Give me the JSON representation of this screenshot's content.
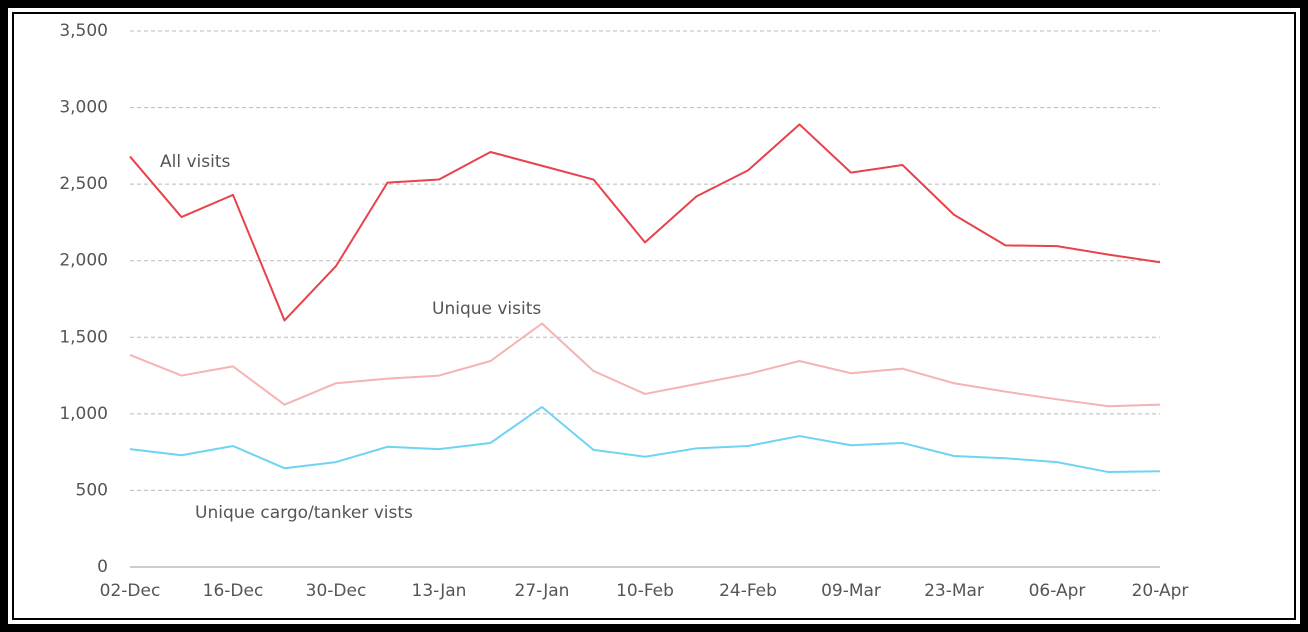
{
  "chart_data": {
    "type": "line",
    "categories": [
      "02-Dec",
      null,
      "16-Dec",
      null,
      "30-Dec",
      null,
      "13-Jan",
      null,
      "27-Jan",
      null,
      "10-Feb",
      null,
      "24-Feb",
      null,
      "09-Mar",
      null,
      "23-Mar",
      null,
      "06-Apr",
      null,
      "20-Apr"
    ],
    "series": [
      {
        "name": "All visits",
        "color": "#e8424a",
        "values": [
          2680,
          2285,
          2430,
          1610,
          1965,
          2510,
          2530,
          2710,
          2620,
          2530,
          2120,
          2420,
          2590,
          2890,
          2575,
          2625,
          2300,
          2100,
          2095,
          2040,
          1990
        ]
      },
      {
        "name": "Unique visits",
        "color": "#f5b3b3",
        "values": [
          1385,
          1250,
          1310,
          1060,
          1200,
          1230,
          1250,
          1345,
          1590,
          1280,
          1130,
          1195,
          1260,
          1345,
          1265,
          1295,
          1200,
          1145,
          1095,
          1050,
          1060
        ]
      },
      {
        "name": "Unique cargo/tanker vists",
        "color": "#6fd3f2",
        "values": [
          770,
          730,
          790,
          645,
          685,
          785,
          770,
          810,
          1045,
          765,
          720,
          775,
          790,
          855,
          795,
          810,
          725,
          710,
          685,
          620,
          625
        ]
      }
    ],
    "ylim": [
      0,
      3500
    ],
    "yticks": [
      0,
      500,
      {
        "value": 1000,
        "label": "1,000"
      },
      {
        "value": 1500,
        "label": "1,500"
      },
      {
        "value": 2000,
        "label": "2,000"
      },
      {
        "value": 2500,
        "label": "2,500"
      },
      {
        "value": 3000,
        "label": "3,000"
      },
      {
        "value": 3500,
        "label": "3,500"
      }
    ],
    "grid": true
  }
}
